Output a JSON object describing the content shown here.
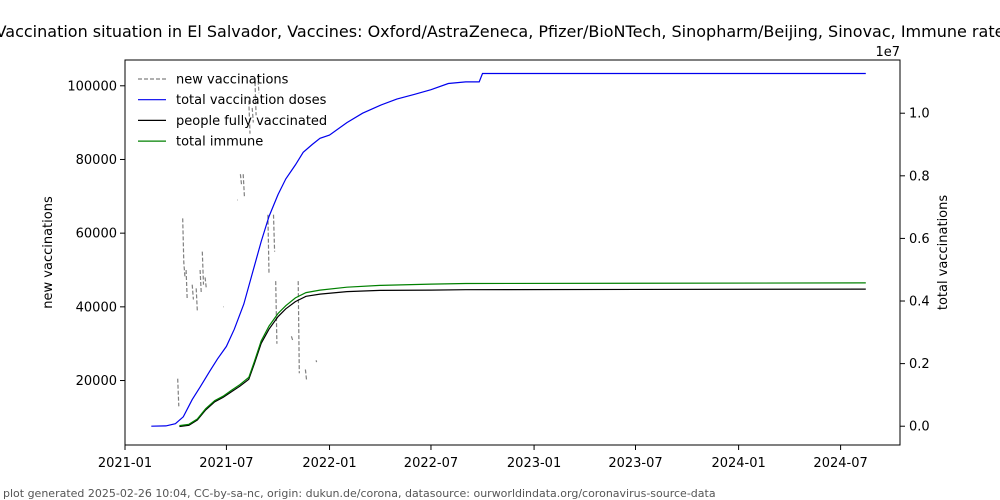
{
  "chart_data": {
    "type": "line",
    "title": "Vaccination situation in El Salvador, Vaccines: Oxford/AstraZeneca, Pfizer/BioNTech, Sinopharm/Beijing, Sinovac, Immune rate",
    "xlabel": "",
    "ylabel_left": "new vaccinations",
    "ylabel_right": "total vaccinations",
    "right_axis_multiplier": "1e7",
    "x_range": [
      "2021-01-01",
      "2024-10-15"
    ],
    "y_left_range": [
      2500,
      107000
    ],
    "y_right_range": [
      -600000,
      11700000
    ],
    "x_ticks": [
      "2021-01",
      "2021-07",
      "2022-01",
      "2022-07",
      "2023-01",
      "2023-07",
      "2024-01",
      "2024-07"
    ],
    "y_left_ticks": [
      20000,
      40000,
      60000,
      80000,
      100000
    ],
    "y_right_ticks": [
      0,
      2000000,
      4000000,
      6000000,
      8000000,
      10000000
    ],
    "y_right_tick_labels": [
      "0.0",
      "0.2",
      "0.4",
      "0.6",
      "0.8",
      "1.0"
    ],
    "grid": false,
    "legend_position": "top-left",
    "legend": [
      {
        "key": "new",
        "label": "new vaccinations",
        "color": "#808080",
        "dash": "dashed"
      },
      {
        "key": "total",
        "label": "total vaccination doses",
        "color": "#0000ee",
        "dash": "solid"
      },
      {
        "key": "fully",
        "label": "people fully vaccinated",
        "color": "#000000",
        "dash": "solid"
      },
      {
        "key": "immune",
        "label": "total immune",
        "color": "#008000",
        "dash": "solid"
      }
    ],
    "series": [
      {
        "key": "new",
        "axis": "left",
        "segments": [
          [
            [
              "2021-04-05",
              20500
            ],
            [
              "2021-04-07",
              13000
            ]
          ],
          [
            [
              "2021-04-14",
              64000
            ],
            [
              "2021-04-16",
              52000
            ],
            [
              "2021-04-18",
              48000
            ]
          ],
          [
            [
              "2021-04-20",
              50000
            ],
            [
              "2021-04-22",
              42000
            ]
          ],
          [
            [
              "2021-05-01",
              46000
            ],
            [
              "2021-05-03",
              42000
            ]
          ],
          [
            [
              "2021-05-08",
              45000
            ],
            [
              "2021-05-10",
              39000
            ]
          ],
          [
            [
              "2021-05-15",
              50000
            ],
            [
              "2021-05-17",
              44000
            ]
          ],
          [
            [
              "2021-05-19",
              55000
            ],
            [
              "2021-05-21",
              46000
            ]
          ],
          [
            [
              "2021-05-24",
              48000
            ],
            [
              "2021-05-26",
              45000
            ]
          ],
          [
            [
              "2021-06-25",
              40000
            ],
            [
              "2021-06-26",
              40000
            ]
          ],
          [
            [
              "2021-07-20",
              69000
            ],
            [
              "2021-07-21",
              69000
            ]
          ],
          [
            [
              "2021-07-26",
              76000
            ],
            [
              "2021-07-28",
              73000
            ]
          ],
          [
            [
              "2021-07-31",
              76000
            ],
            [
              "2021-08-02",
              70000
            ]
          ],
          [
            [
              "2021-08-10",
              96000
            ],
            [
              "2021-08-12",
              87000
            ]
          ],
          [
            [
              "2021-08-16",
              94000
            ],
            [
              "2021-08-18",
              90000
            ]
          ],
          [
            [
              "2021-08-21",
              101000
            ],
            [
              "2021-08-23",
              92000
            ]
          ],
          [
            [
              "2021-08-26",
              103000
            ],
            [
              "2021-08-28",
              98000
            ]
          ],
          [
            [
              "2021-09-13",
              65000
            ],
            [
              "2021-09-15",
              49000
            ]
          ],
          [
            [
              "2021-09-23",
              65000
            ],
            [
              "2021-09-25",
              55000
            ]
          ],
          [
            [
              "2021-09-27",
              47000
            ],
            [
              "2021-09-29",
              30000
            ]
          ],
          [
            [
              "2021-10-25",
              32000
            ],
            [
              "2021-10-27",
              31000
            ]
          ],
          [
            [
              "2021-11-06",
              47000
            ],
            [
              "2021-11-08",
              22000
            ]
          ],
          [
            [
              "2021-11-19",
              23000
            ],
            [
              "2021-11-21",
              20000
            ]
          ],
          [
            [
              "2021-12-08",
              25500
            ],
            [
              "2021-12-09",
              25000
            ]
          ]
        ]
      },
      {
        "key": "total",
        "axis": "right",
        "points": [
          [
            "2021-02-17",
            0
          ],
          [
            "2021-03-15",
            10000
          ],
          [
            "2021-04-01",
            80000
          ],
          [
            "2021-04-15",
            300000
          ],
          [
            "2021-05-01",
            850000
          ],
          [
            "2021-05-15",
            1250000
          ],
          [
            "2021-06-01",
            1750000
          ],
          [
            "2021-06-15",
            2150000
          ],
          [
            "2021-07-01",
            2550000
          ],
          [
            "2021-07-15",
            3100000
          ],
          [
            "2021-08-01",
            3900000
          ],
          [
            "2021-08-15",
            4800000
          ],
          [
            "2021-09-01",
            5900000
          ],
          [
            "2021-09-15",
            6700000
          ],
          [
            "2021-10-01",
            7400000
          ],
          [
            "2021-10-15",
            7900000
          ],
          [
            "2021-11-01",
            8350000
          ],
          [
            "2021-11-15",
            8750000
          ],
          [
            "2021-12-01",
            9000000
          ],
          [
            "2021-12-15",
            9200000
          ],
          [
            "2022-01-01",
            9300000
          ],
          [
            "2022-02-01",
            9700000
          ],
          [
            "2022-03-01",
            10000000
          ],
          [
            "2022-04-01",
            10250000
          ],
          [
            "2022-05-01",
            10450000
          ],
          [
            "2022-06-01",
            10600000
          ],
          [
            "2022-07-01",
            10750000
          ],
          [
            "2022-08-01",
            10950000
          ],
          [
            "2022-09-01",
            11000000
          ],
          [
            "2022-09-25",
            11000000
          ],
          [
            "2022-10-01",
            11270000
          ],
          [
            "2024-08-15",
            11270000
          ]
        ]
      },
      {
        "key": "fully",
        "axis": "right",
        "points": [
          [
            "2021-04-08",
            -10000
          ],
          [
            "2021-04-25",
            30000
          ],
          [
            "2021-05-10",
            200000
          ],
          [
            "2021-05-25",
            520000
          ],
          [
            "2021-06-10",
            780000
          ],
          [
            "2021-06-25",
            920000
          ],
          [
            "2021-07-10",
            1100000
          ],
          [
            "2021-07-25",
            1280000
          ],
          [
            "2021-08-10",
            1500000
          ],
          [
            "2021-08-20",
            2000000
          ],
          [
            "2021-09-01",
            2650000
          ],
          [
            "2021-09-15",
            3100000
          ],
          [
            "2021-10-01",
            3500000
          ],
          [
            "2021-10-15",
            3750000
          ],
          [
            "2021-11-01",
            3980000
          ],
          [
            "2021-11-20",
            4150000
          ],
          [
            "2021-12-15",
            4220000
          ],
          [
            "2022-02-01",
            4300000
          ],
          [
            "2022-04-01",
            4340000
          ],
          [
            "2022-07-01",
            4350000
          ],
          [
            "2022-09-01",
            4360000
          ],
          [
            "2024-08-15",
            4380000
          ]
        ]
      },
      {
        "key": "immune",
        "axis": "right",
        "points": [
          [
            "2021-04-08",
            20000
          ],
          [
            "2021-04-25",
            60000
          ],
          [
            "2021-05-10",
            230000
          ],
          [
            "2021-05-25",
            560000
          ],
          [
            "2021-06-10",
            820000
          ],
          [
            "2021-06-25",
            960000
          ],
          [
            "2021-07-10",
            1150000
          ],
          [
            "2021-07-25",
            1330000
          ],
          [
            "2021-08-10",
            1560000
          ],
          [
            "2021-08-20",
            2070000
          ],
          [
            "2021-09-01",
            2730000
          ],
          [
            "2021-09-15",
            3200000
          ],
          [
            "2021-10-01",
            3600000
          ],
          [
            "2021-10-15",
            3850000
          ],
          [
            "2021-11-01",
            4100000
          ],
          [
            "2021-11-20",
            4270000
          ],
          [
            "2021-12-15",
            4350000
          ],
          [
            "2022-02-01",
            4440000
          ],
          [
            "2022-04-01",
            4500000
          ],
          [
            "2022-07-01",
            4540000
          ],
          [
            "2022-09-01",
            4560000
          ],
          [
            "2024-08-15",
            4580000
          ]
        ]
      }
    ]
  },
  "footer": "plot generated 2025-02-26 10:04, CC-by-sa-nc, origin: dukun.de/corona, datasource: ourworldindata.org/coronavirus-source-data"
}
